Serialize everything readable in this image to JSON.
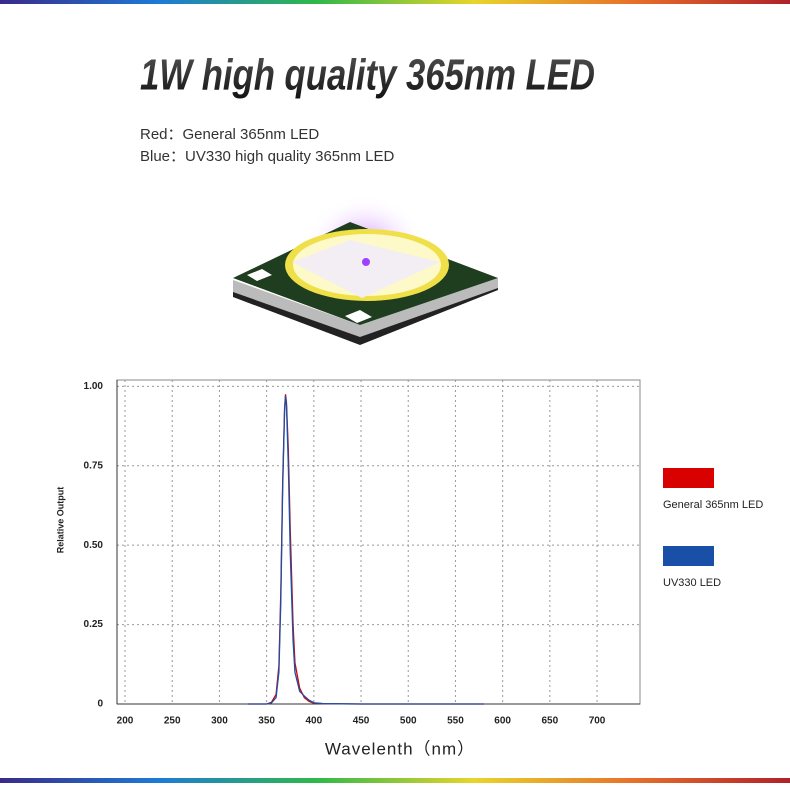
{
  "header": {
    "title": "1W high quality 365nm LED",
    "lines": [
      "Red：General 365nm LED",
      "Blue：UV330 high quality 365nm LED"
    ]
  },
  "chart_data": {
    "type": "line",
    "x_label": "Wavelenth（nm）",
    "y_label": "Relative Output",
    "x": [
      330,
      350,
      355,
      360,
      363,
      365,
      367,
      369,
      370,
      371,
      373,
      375,
      378,
      380,
      385,
      390,
      395,
      400,
      410,
      450,
      500,
      580
    ],
    "series": [
      {
        "name": "General 365nm LED",
        "color": "#d90000",
        "values": [
          0,
          0,
          0.005,
          0.03,
          0.12,
          0.35,
          0.7,
          0.93,
          0.975,
          0.95,
          0.8,
          0.55,
          0.25,
          0.13,
          0.05,
          0.02,
          0.008,
          0.003,
          0.001,
          0,
          0,
          0
        ]
      },
      {
        "name": "UV330 LED",
        "color": "#1a4fa8",
        "values": [
          0,
          0,
          0.003,
          0.02,
          0.1,
          0.32,
          0.68,
          0.92,
          0.97,
          0.94,
          0.75,
          0.48,
          0.2,
          0.1,
          0.04,
          0.025,
          0.012,
          0.004,
          0.001,
          0,
          0,
          0
        ]
      }
    ],
    "xlim": [
      191.5,
      745.5
    ],
    "xticks": [
      200,
      250,
      300,
      350,
      400,
      450,
      500,
      550,
      600,
      650,
      700
    ],
    "ylim": [
      0,
      1.02
    ],
    "yticks": [
      0,
      0.25,
      {
        "value": 0.5,
        "label": "0.50"
      },
      0.75,
      {
        "value": 1,
        "label": "1.00"
      }
    ],
    "grid": true,
    "legend": "right"
  }
}
